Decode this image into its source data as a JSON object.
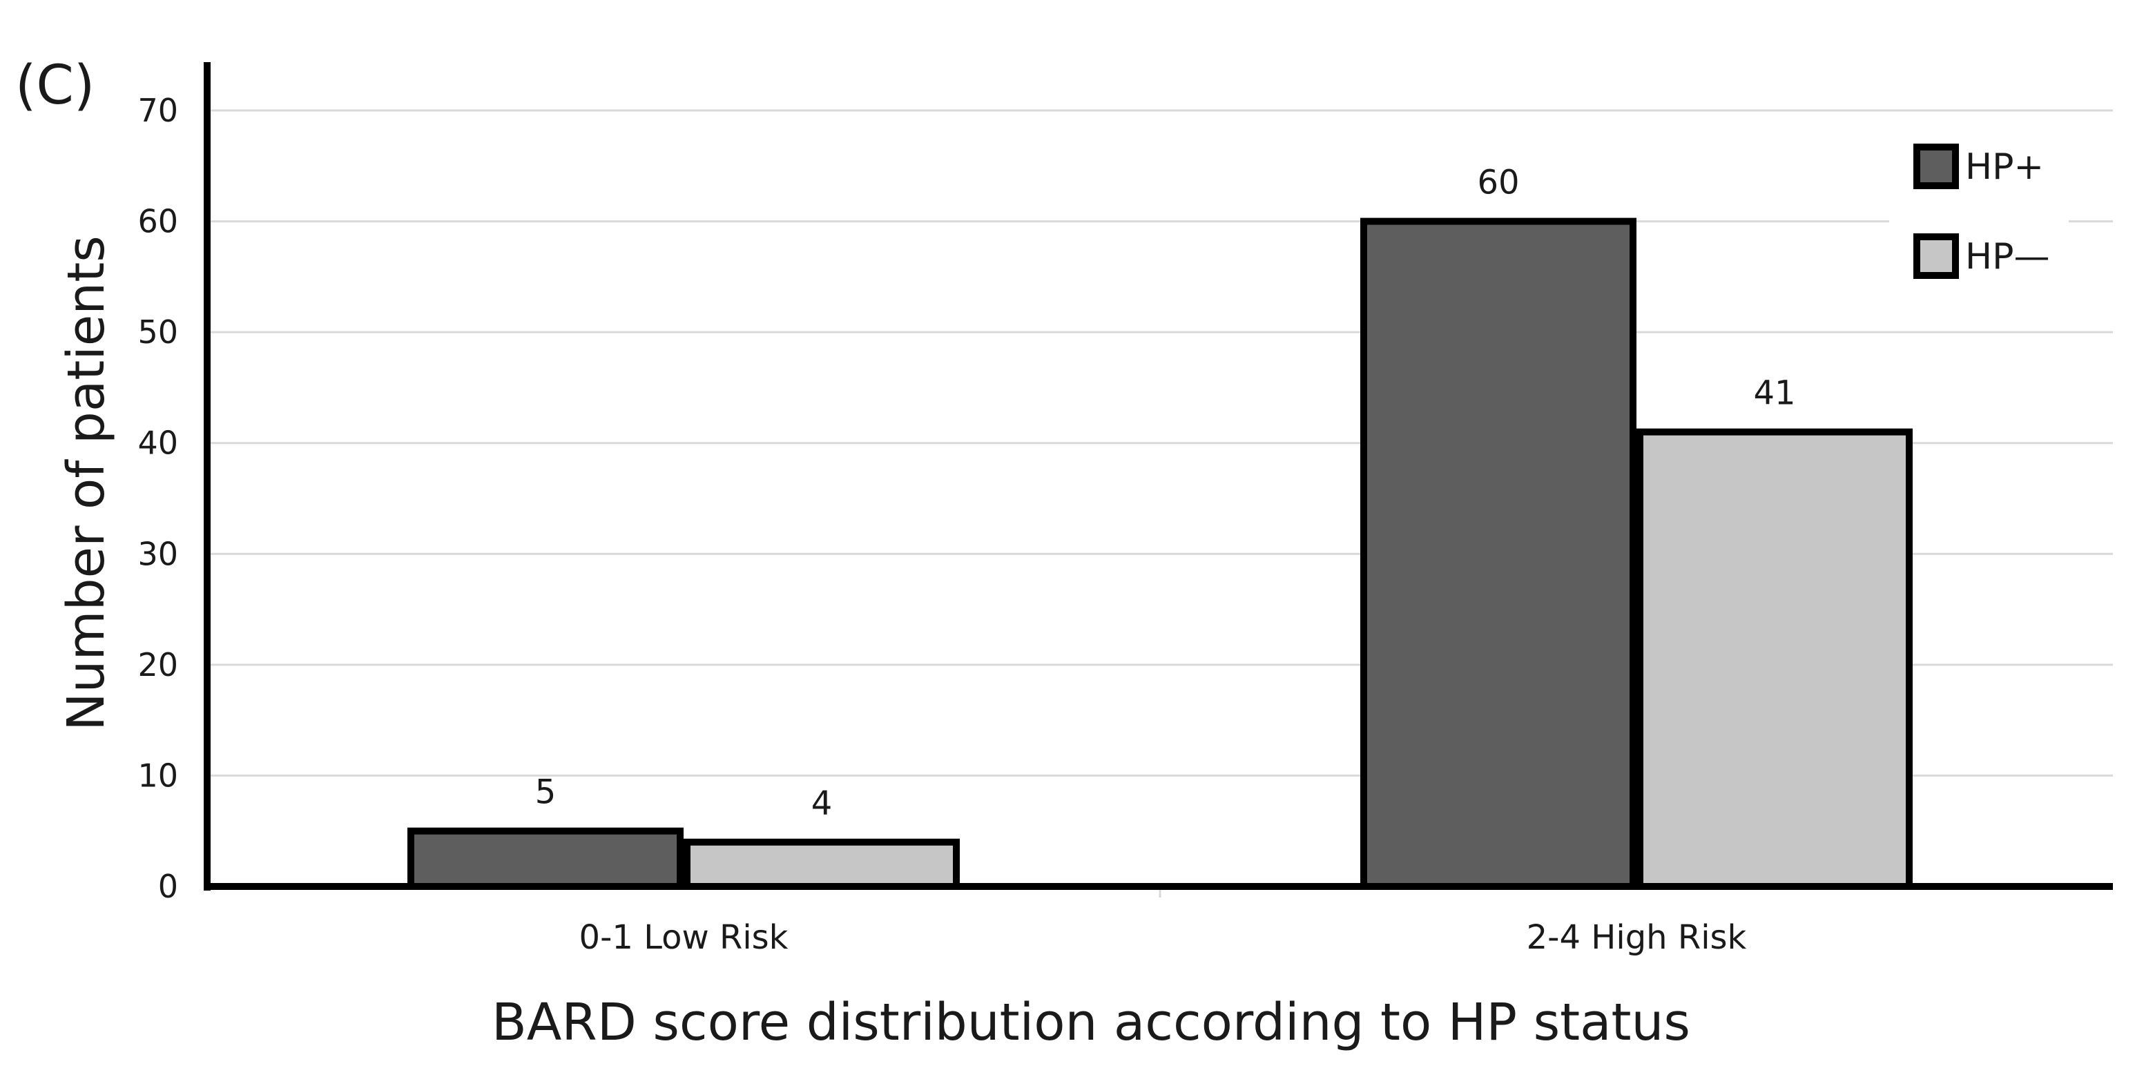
{
  "panel_label": "(C)",
  "chart_data": {
    "type": "bar",
    "categories": [
      "0-1 Low Risk",
      "2-4 High Risk"
    ],
    "series": [
      {
        "name": "HP+",
        "values": [
          5,
          60
        ],
        "color": "#5e5e5e"
      },
      {
        "name": "HP—",
        "values": [
          4,
          41
        ],
        "color": "#c6c6c6"
      }
    ],
    "xlabel": "BARD score distribution according to HP status",
    "ylabel": "Number of patients",
    "ylim": [
      0,
      70
    ],
    "yticks": [
      0,
      10,
      20,
      30,
      40,
      50,
      60,
      70
    ],
    "grid": true,
    "legend_position": "top-right",
    "data_labels": true
  }
}
